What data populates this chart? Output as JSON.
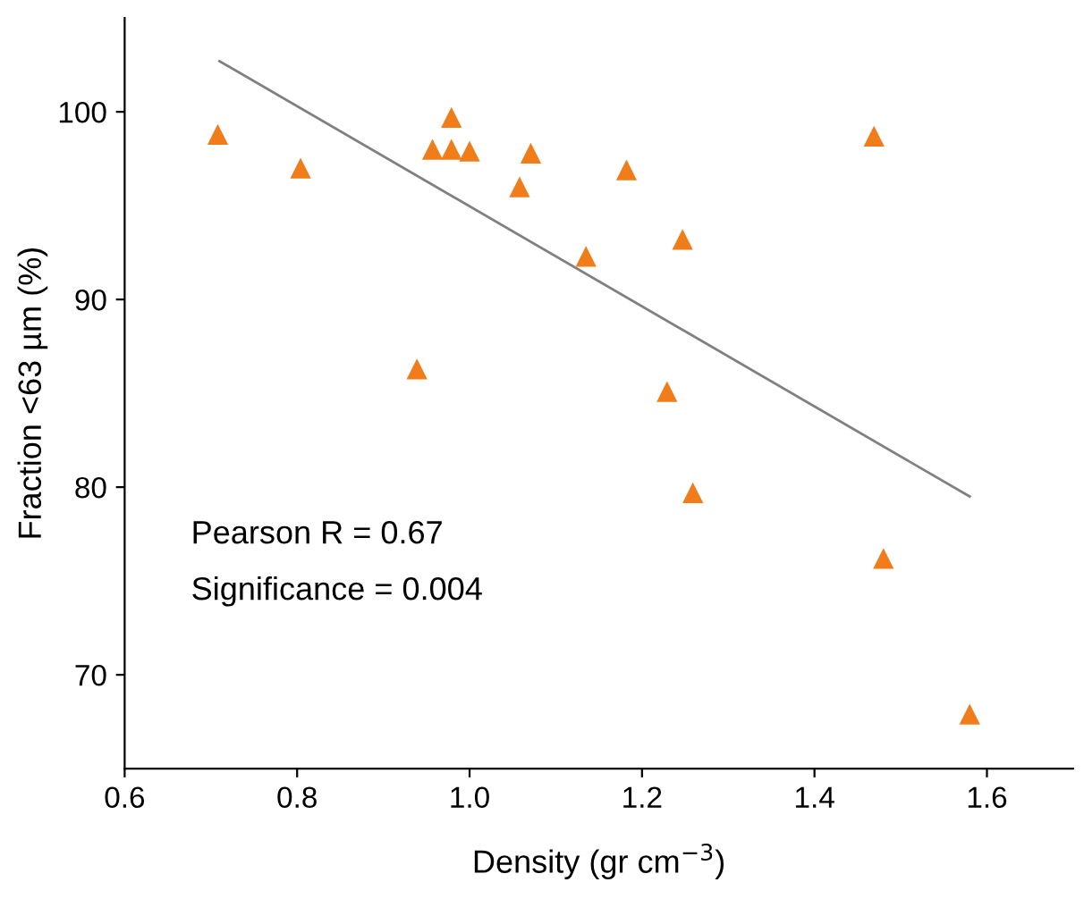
{
  "chart_data": {
    "type": "scatter",
    "xlabel": "Density (gr cm$^{−3}$)",
    "ylabel": "Fraction <63 µm (%)",
    "xlim": [
      0.6,
      1.7
    ],
    "xticks": [
      0.6,
      0.8,
      {
        "value": 1.0,
        "label": "1.0"
      },
      1.2,
      1.4,
      1.6
    ],
    "ylim": [
      65,
      105
    ],
    "yticks": [
      70,
      80,
      90,
      100
    ],
    "grid": false,
    "legend": false,
    "annotations": [
      "Pearson R = 0.67",
      "Significance = 0.004"
    ],
    "series": [
      {
        "color": "#f07d1a",
        "marker": "triangle",
        "x": [
          0.708,
          0.804,
          0.979,
          0.957,
          0.979,
          1.0,
          1.071,
          1.058,
          1.182,
          1.469,
          1.135,
          1.247,
          0.939,
          1.229,
          1.259,
          1.48,
          1.58
        ],
        "values": [
          98.8,
          97.0,
          99.7,
          98.0,
          98.0,
          97.9,
          97.8,
          96.0,
          96.9,
          98.7,
          92.3,
          93.2,
          86.3,
          85.1,
          79.7,
          76.2,
          67.9
        ]
      },
      {
        "type": "line",
        "color": "#808080",
        "marker": "none",
        "line_style": "solid",
        "x": [
          0.71,
          1.58
        ],
        "values": [
          102.7,
          79.5
        ]
      }
    ]
  }
}
